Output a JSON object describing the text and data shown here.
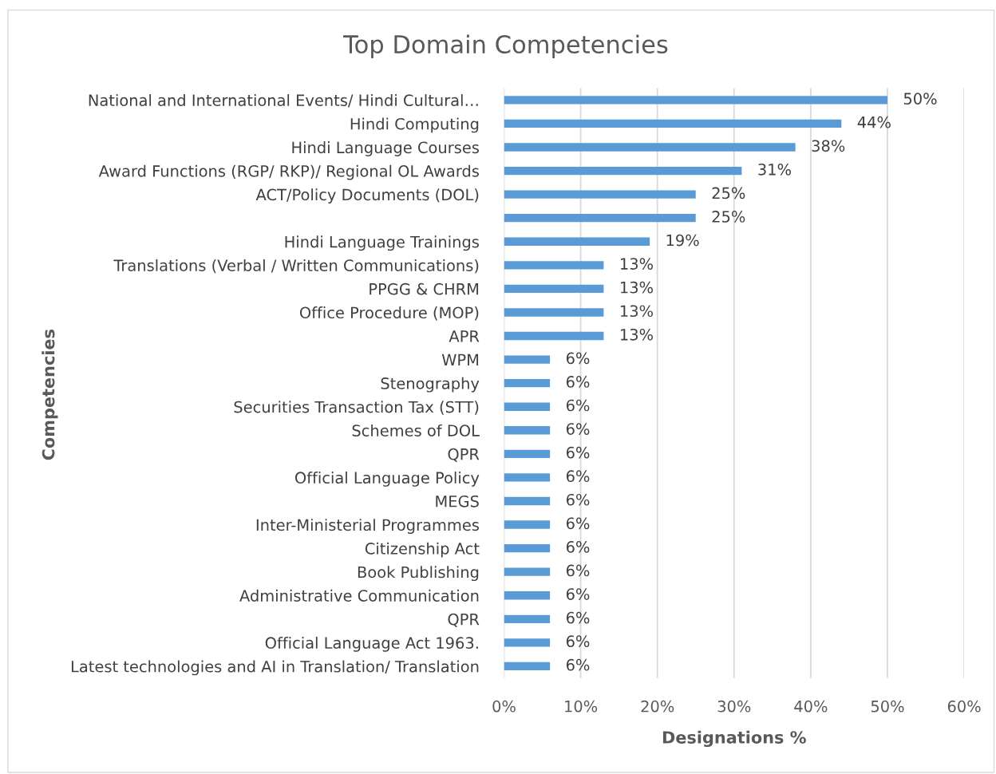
{
  "chart_data": {
    "type": "bar",
    "orientation": "horizontal",
    "title": "Top Domain Competencies",
    "xlabel": "Designations %",
    "ylabel": "Competencies",
    "categories": [
      "National and International Events/ Hindi Cultural…",
      "Hindi Computing",
      "Hindi Language Courses",
      "Award Functions (RGP/ RKP)/ Regional OL Awards",
      "ACT/Policy Documents (DOL)",
      null,
      "Hindi Language Trainings",
      "Translations (Verbal / Written Communications)",
      "PPGG & CHRM",
      "Office Procedure (MOP)",
      "APR",
      "WPM",
      "Stenography",
      "Securities Transaction Tax (STT)",
      "Schemes of DOL",
      "QPR",
      "Official Language Policy",
      "MEGS",
      "Inter-Ministerial Programmes",
      "Citizenship Act",
      "Book Publishing",
      "Administrative Communication",
      "QPR",
      "Official Language Act 1963.",
      "Latest technologies and AI in Translation/ Translation"
    ],
    "values": [
      50,
      44,
      38,
      31,
      25,
      25,
      19,
      13,
      13,
      13,
      13,
      6,
      6,
      6,
      6,
      6,
      6,
      6,
      6,
      6,
      6,
      6,
      6,
      6,
      6
    ],
    "value_labels": [
      "50%",
      "44%",
      "38%",
      "31%",
      "25%",
      "25%",
      "19%",
      "13%",
      "13%",
      "13%",
      "13%",
      "6%",
      "6%",
      "6%",
      "6%",
      "6%",
      "6%",
      "6%",
      "6%",
      "6%",
      "6%",
      "6%",
      "6%",
      "6%",
      "6%"
    ],
    "color": "#5b9bd5",
    "xlim": [
      0,
      60
    ],
    "xticks": [
      {
        "value": 0,
        "label": "0%"
      },
      {
        "value": 10,
        "label": "10%"
      },
      {
        "value": 20,
        "label": "20%"
      },
      {
        "value": 30,
        "label": "30%"
      },
      {
        "value": 40,
        "label": "40%"
      },
      {
        "value": 50,
        "label": "50%"
      },
      {
        "value": 60,
        "label": "60%"
      }
    ],
    "grid": "x"
  }
}
